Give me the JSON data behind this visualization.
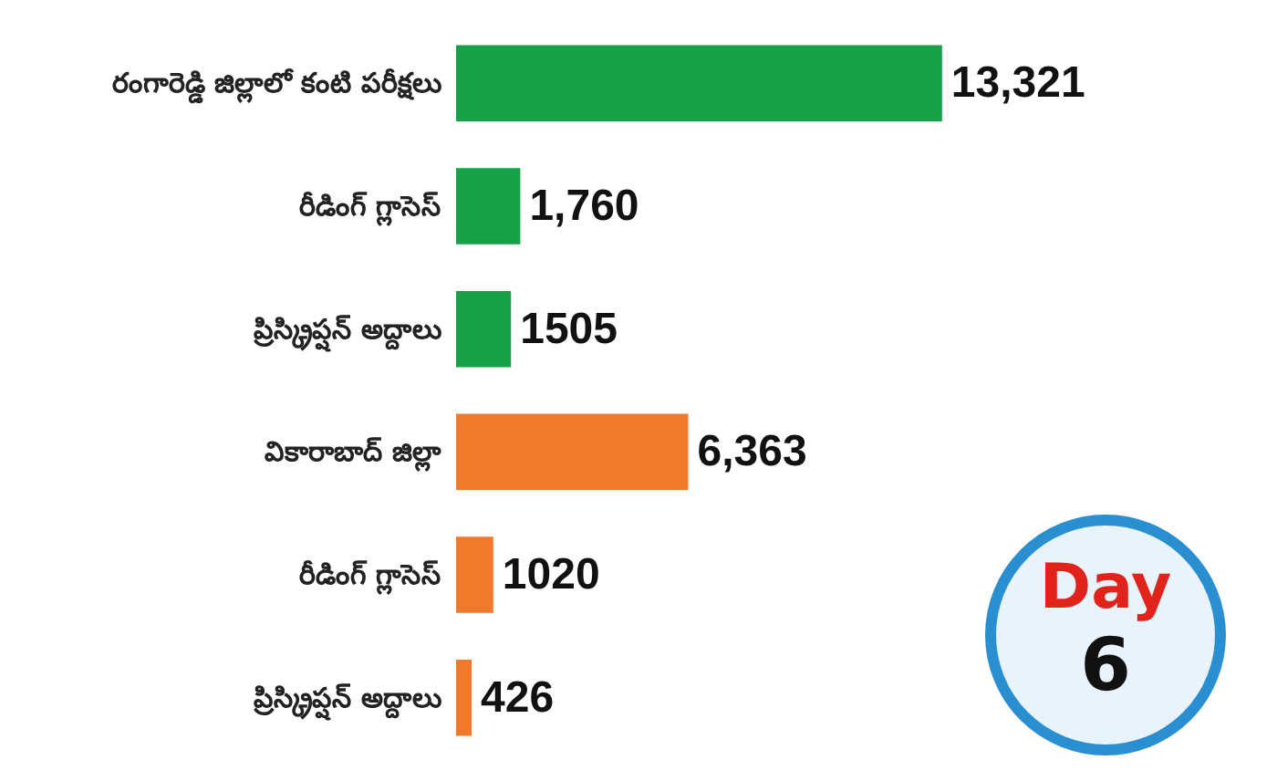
{
  "chart_data": {
    "type": "bar",
    "orientation": "horizontal",
    "categories": [
      "రంగారెడ్డి జిల్లాలో కంటి పరీక్షలు",
      "రీడింగ్ గ్లాసెస్",
      "ప్రిస్క్రిప్షన్ అద్దాలు",
      "వికారాబాద్ జిల్లా",
      "రీడింగ్ గ్లాసెస్",
      "ప్రిస్క్రిప్షన్ అద్దాలు"
    ],
    "values": [
      13321,
      1760,
      1505,
      6363,
      1020,
      426
    ],
    "value_labels": [
      "13,321",
      "1,760",
      "1505",
      "6,363",
      "1020",
      "426"
    ],
    "colors": [
      "#17a24a",
      "#17a24a",
      "#17a24a",
      "#ef7a2b",
      "#ef7a2b",
      "#ef7a2b"
    ],
    "tick_labels": "y",
    "annotations": [
      "Day",
      "6"
    ]
  }
}
